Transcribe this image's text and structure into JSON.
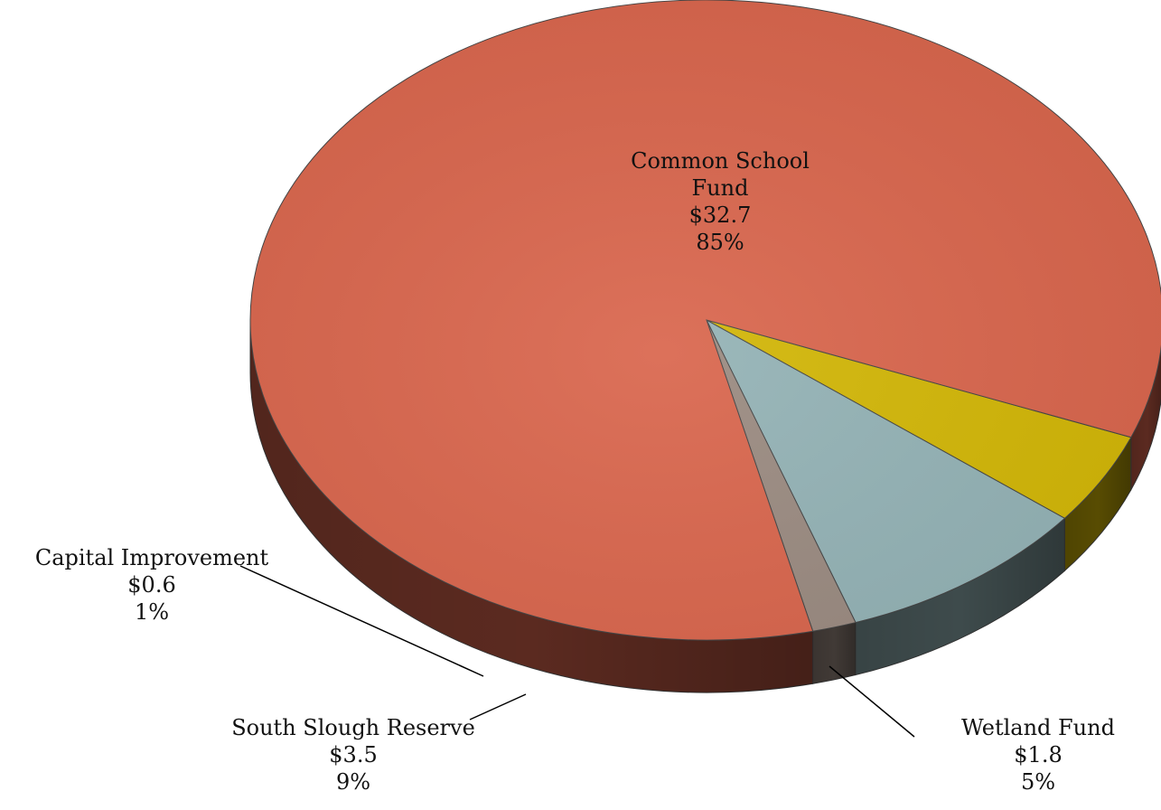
{
  "chart_data": {
    "type": "pie",
    "style": "3d-exploded-depth",
    "title": "",
    "slices": [
      {
        "name": "Common School Fund",
        "value": 32.7,
        "value_label": "$32.7",
        "percent": 85,
        "percent_label": "85%",
        "color": "#D9654C"
      },
      {
        "name": "Capital Improvement",
        "value": 0.6,
        "value_label": "$0.6",
        "percent": 1,
        "percent_label": "1%",
        "color": "#9A8A80"
      },
      {
        "name": "South Slough Reserve",
        "value": 3.5,
        "value_label": "$3.5",
        "percent": 9,
        "percent_label": "9%",
        "color": "#93B2B5"
      },
      {
        "name": "Wetland Fund",
        "value": 1.8,
        "value_label": "$1.8",
        "percent": 5,
        "percent_label": "5%",
        "color": "#D2B605"
      }
    ],
    "legend": "none"
  }
}
